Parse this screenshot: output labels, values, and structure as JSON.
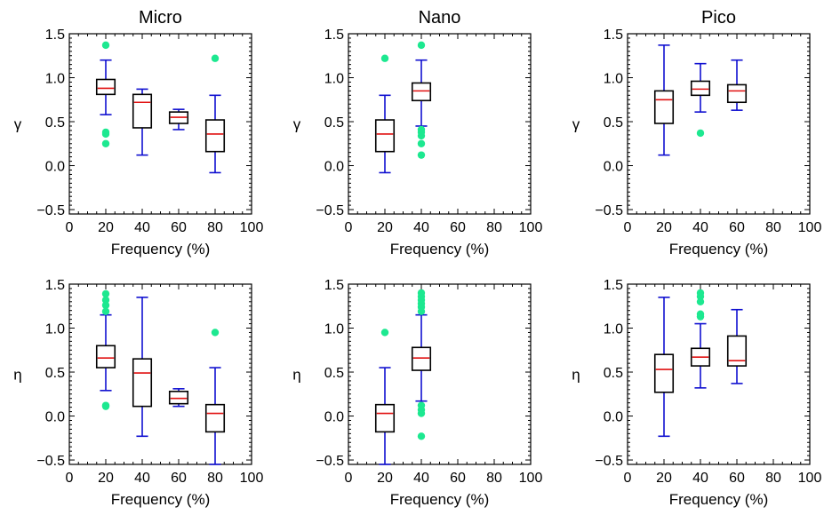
{
  "colors": {
    "whisker": "#1010d0",
    "median": "#e01010",
    "outlier": "#1de890",
    "box": "#000000",
    "axis": "#000000"
  },
  "chart_data": [
    {
      "type": "box",
      "title": "Micro",
      "xlabel": "Frequency (%)",
      "ylabel": "γ",
      "xlim": [
        0,
        100
      ],
      "ylim": [
        -0.55,
        1.5
      ],
      "xticks": [
        "0",
        "20",
        "40",
        "60",
        "80",
        "100"
      ],
      "yticks": [
        "−0.5",
        "0.0",
        "0.5",
        "1.0",
        "1.5"
      ],
      "boxes": [
        {
          "x": 20,
          "whisker_low": 0.58,
          "q1": 0.81,
          "median": 0.88,
          "q3": 0.98,
          "whisker_high": 1.2,
          "outliers": [
            1.37,
            0.38,
            0.36,
            0.25
          ]
        },
        {
          "x": 40,
          "whisker_low": 0.12,
          "q1": 0.43,
          "median": 0.72,
          "q3": 0.81,
          "whisker_high": 0.87,
          "outliers": []
        },
        {
          "x": 60,
          "whisker_low": 0.41,
          "q1": 0.48,
          "median": 0.55,
          "q3": 0.61,
          "whisker_high": 0.64,
          "outliers": []
        },
        {
          "x": 80,
          "whisker_low": -0.08,
          "q1": 0.16,
          "median": 0.36,
          "q3": 0.52,
          "whisker_high": 0.8,
          "outliers": [
            1.22
          ]
        }
      ]
    },
    {
      "type": "box",
      "title": "Nano",
      "xlabel": "Frequency (%)",
      "ylabel": "γ",
      "xlim": [
        0,
        100
      ],
      "ylim": [
        -0.55,
        1.5
      ],
      "xticks": [
        "0",
        "20",
        "40",
        "60",
        "80",
        "100"
      ],
      "yticks": [
        "−0.5",
        "0.0",
        "0.5",
        "1.0",
        "1.5"
      ],
      "boxes": [
        {
          "x": 20,
          "whisker_low": -0.08,
          "q1": 0.16,
          "median": 0.36,
          "q3": 0.52,
          "whisker_high": 0.8,
          "outliers": [
            1.22
          ]
        },
        {
          "x": 40,
          "whisker_low": 0.45,
          "q1": 0.74,
          "median": 0.85,
          "q3": 0.94,
          "whisker_high": 1.2,
          "outliers": [
            1.37,
            0.41,
            0.38,
            0.34,
            0.25,
            0.12
          ]
        }
      ]
    },
    {
      "type": "box",
      "title": "Pico",
      "xlabel": "Frequency (%)",
      "ylabel": "γ",
      "xlim": [
        0,
        100
      ],
      "ylim": [
        -0.55,
        1.5
      ],
      "xticks": [
        "0",
        "20",
        "40",
        "60",
        "80",
        "100"
      ],
      "yticks": [
        "−0.5",
        "0.0",
        "0.5",
        "1.0",
        "1.5"
      ],
      "boxes": [
        {
          "x": 20,
          "whisker_low": 0.12,
          "q1": 0.48,
          "median": 0.75,
          "q3": 0.85,
          "whisker_high": 1.37,
          "outliers": []
        },
        {
          "x": 40,
          "whisker_low": 0.61,
          "q1": 0.8,
          "median": 0.87,
          "q3": 0.96,
          "whisker_high": 1.16,
          "outliers": [
            0.37
          ]
        },
        {
          "x": 60,
          "whisker_low": 0.63,
          "q1": 0.72,
          "median": 0.85,
          "q3": 0.92,
          "whisker_high": 1.2,
          "outliers": []
        }
      ]
    },
    {
      "type": "box",
      "title": "",
      "xlabel": "Frequency (%)",
      "ylabel": "η",
      "xlim": [
        0,
        100
      ],
      "ylim": [
        -0.55,
        1.5
      ],
      "xticks": [
        "0",
        "20",
        "40",
        "60",
        "80",
        "100"
      ],
      "yticks": [
        "−0.5",
        "0.0",
        "0.5",
        "1.0",
        "1.5"
      ],
      "boxes": [
        {
          "x": 20,
          "whisker_low": 0.29,
          "q1": 0.55,
          "median": 0.66,
          "q3": 0.8,
          "whisker_high": 1.15,
          "outliers": [
            1.39,
            1.32,
            1.26,
            1.19,
            0.12,
            0.11
          ]
        },
        {
          "x": 40,
          "whisker_low": -0.23,
          "q1": 0.11,
          "median": 0.49,
          "q3": 0.65,
          "whisker_high": 1.35,
          "outliers": []
        },
        {
          "x": 60,
          "whisker_low": 0.11,
          "q1": 0.14,
          "median": 0.2,
          "q3": 0.28,
          "whisker_high": 0.31,
          "outliers": []
        },
        {
          "x": 80,
          "whisker_low": -0.55,
          "q1": -0.18,
          "median": 0.03,
          "q3": 0.13,
          "whisker_high": 0.55,
          "outliers": [
            0.95
          ]
        }
      ]
    },
    {
      "type": "box",
      "title": "",
      "xlabel": "Frequency (%)",
      "ylabel": "η",
      "xlim": [
        0,
        100
      ],
      "ylim": [
        -0.55,
        1.5
      ],
      "xticks": [
        "0",
        "20",
        "40",
        "60",
        "80",
        "100"
      ],
      "yticks": [
        "−0.5",
        "0.0",
        "0.5",
        "1.0",
        "1.5"
      ],
      "boxes": [
        {
          "x": 20,
          "whisker_low": -0.55,
          "q1": -0.18,
          "median": 0.03,
          "q3": 0.13,
          "whisker_high": 0.55,
          "outliers": [
            0.95
          ]
        },
        {
          "x": 40,
          "whisker_low": 0.17,
          "q1": 0.52,
          "median": 0.66,
          "q3": 0.78,
          "whisker_high": 1.15,
          "outliers": [
            1.4,
            1.36,
            1.32,
            1.28,
            1.24,
            1.19,
            0.12,
            0.07,
            0.03,
            -0.23
          ]
        }
      ]
    },
    {
      "type": "box",
      "title": "",
      "xlabel": "Frequency (%)",
      "ylabel": "η",
      "xlim": [
        0,
        100
      ],
      "ylim": [
        -0.55,
        1.5
      ],
      "xticks": [
        "0",
        "20",
        "40",
        "60",
        "80",
        "100"
      ],
      "yticks": [
        "−0.5",
        "0.0",
        "0.5",
        "1.0",
        "1.5"
      ],
      "boxes": [
        {
          "x": 20,
          "whisker_low": -0.23,
          "q1": 0.27,
          "median": 0.53,
          "q3": 0.7,
          "whisker_high": 1.35,
          "outliers": []
        },
        {
          "x": 40,
          "whisker_low": 0.32,
          "q1": 0.57,
          "median": 0.67,
          "q3": 0.77,
          "whisker_high": 1.05,
          "outliers": [
            1.4,
            1.36,
            1.3,
            1.16,
            1.13
          ]
        },
        {
          "x": 60,
          "whisker_low": 0.37,
          "q1": 0.57,
          "median": 0.63,
          "q3": 0.91,
          "whisker_high": 1.21,
          "outliers": []
        }
      ]
    }
  ]
}
